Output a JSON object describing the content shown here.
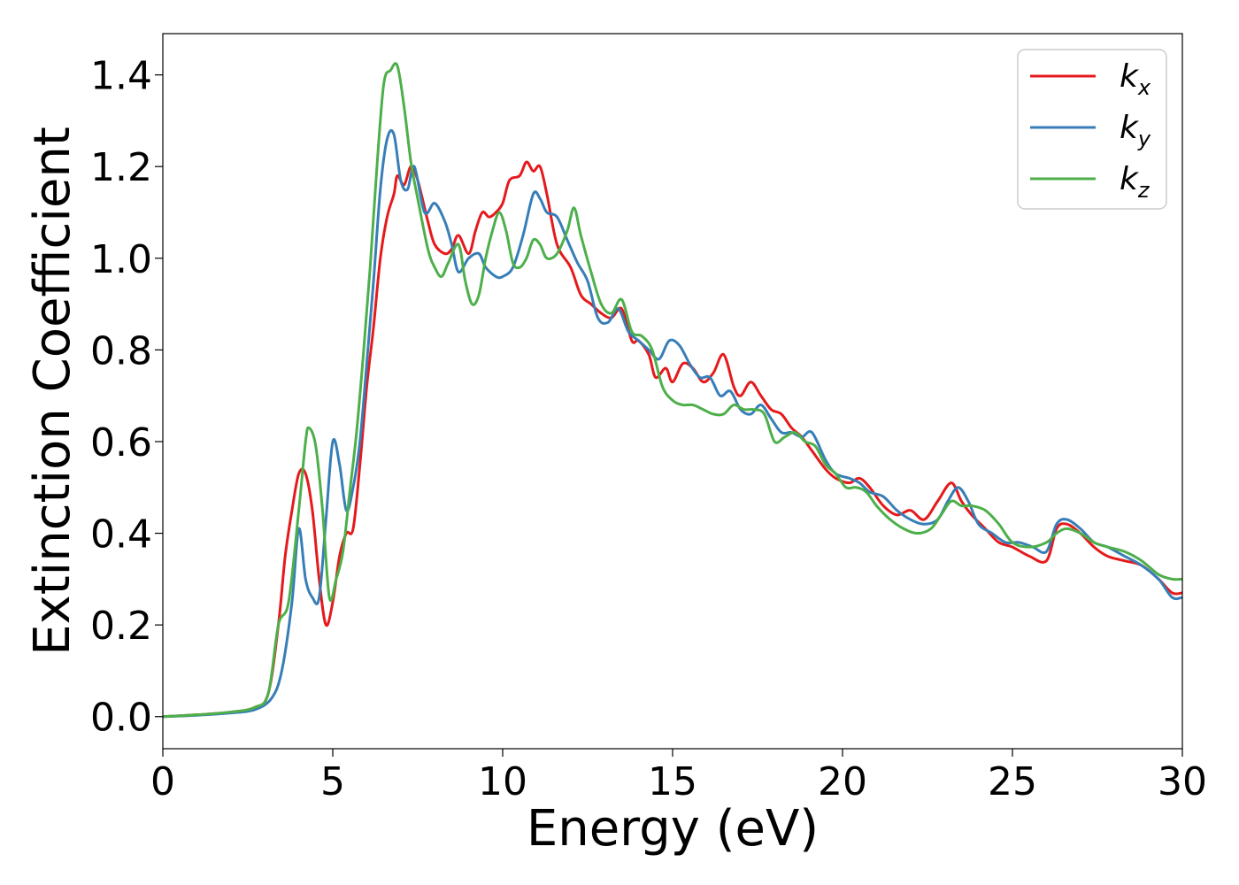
{
  "chart_data": {
    "type": "line",
    "title": "",
    "xlabel": "Energy (eV)",
    "ylabel": "Extinction Coefficient",
    "xlim": [
      0,
      30
    ],
    "ylim": [
      -0.07,
      1.49
    ],
    "xticks": [
      0,
      5,
      10,
      15,
      20,
      25,
      30
    ],
    "yticks": [
      0.0,
      0.2,
      0.4,
      0.6,
      0.8,
      1.0,
      1.2,
      1.4
    ],
    "xtick_labels": [
      "0",
      "5",
      "10",
      "15",
      "20",
      "25",
      "30"
    ],
    "ytick_labels": [
      "0.0",
      "0.2",
      "0.4",
      "0.6",
      "0.8",
      "1.0",
      "1.2",
      "1.4"
    ],
    "grid": false,
    "legend": "top-right",
    "series": [
      {
        "name": "k_x",
        "base": "k",
        "sub": "x",
        "color": "#e41a1c",
        "points": [
          [
            0,
            0
          ],
          [
            1,
            0.004
          ],
          [
            2,
            0.01
          ],
          [
            2.7,
            0.02
          ],
          [
            3.1,
            0.05
          ],
          [
            3.4,
            0.2
          ],
          [
            3.6,
            0.35
          ],
          [
            3.8,
            0.45
          ],
          [
            4.0,
            0.53
          ],
          [
            4.2,
            0.53
          ],
          [
            4.4,
            0.45
          ],
          [
            4.6,
            0.3
          ],
          [
            4.8,
            0.2
          ],
          [
            5.0,
            0.25
          ],
          [
            5.2,
            0.35
          ],
          [
            5.4,
            0.4
          ],
          [
            5.6,
            0.41
          ],
          [
            5.8,
            0.55
          ],
          [
            6.0,
            0.72
          ],
          [
            6.2,
            0.85
          ],
          [
            6.4,
            1.0
          ],
          [
            6.6,
            1.09
          ],
          [
            6.8,
            1.14
          ],
          [
            6.9,
            1.18
          ],
          [
            7.1,
            1.16
          ],
          [
            7.3,
            1.2
          ],
          [
            7.5,
            1.17
          ],
          [
            7.8,
            1.08
          ],
          [
            8.0,
            1.03
          ],
          [
            8.3,
            1.01
          ],
          [
            8.5,
            1.02
          ],
          [
            8.7,
            1.05
          ],
          [
            9.0,
            1.01
          ],
          [
            9.2,
            1.06
          ],
          [
            9.4,
            1.1
          ],
          [
            9.6,
            1.09
          ],
          [
            9.8,
            1.1
          ],
          [
            10.0,
            1.12
          ],
          [
            10.2,
            1.17
          ],
          [
            10.5,
            1.18
          ],
          [
            10.7,
            1.21
          ],
          [
            10.9,
            1.19
          ],
          [
            11.1,
            1.2
          ],
          [
            11.3,
            1.14
          ],
          [
            11.6,
            1.03
          ],
          [
            12.0,
            0.98
          ],
          [
            12.3,
            0.92
          ],
          [
            12.6,
            0.9
          ],
          [
            12.9,
            0.88
          ],
          [
            13.2,
            0.87
          ],
          [
            13.5,
            0.89
          ],
          [
            13.8,
            0.82
          ],
          [
            14.0,
            0.82
          ],
          [
            14.3,
            0.79
          ],
          [
            14.5,
            0.74
          ],
          [
            14.8,
            0.76
          ],
          [
            15.0,
            0.73
          ],
          [
            15.3,
            0.77
          ],
          [
            15.6,
            0.76
          ],
          [
            15.9,
            0.73
          ],
          [
            16.2,
            0.75
          ],
          [
            16.5,
            0.79
          ],
          [
            16.8,
            0.72
          ],
          [
            17.0,
            0.7
          ],
          [
            17.3,
            0.73
          ],
          [
            17.6,
            0.7
          ],
          [
            17.9,
            0.67
          ],
          [
            18.2,
            0.66
          ],
          [
            18.5,
            0.63
          ],
          [
            18.8,
            0.61
          ],
          [
            19.1,
            0.58
          ],
          [
            19.5,
            0.54
          ],
          [
            19.8,
            0.52
          ],
          [
            20.2,
            0.51
          ],
          [
            20.5,
            0.52
          ],
          [
            20.8,
            0.5
          ],
          [
            21.2,
            0.46
          ],
          [
            21.6,
            0.44
          ],
          [
            22.0,
            0.45
          ],
          [
            22.4,
            0.43
          ],
          [
            22.8,
            0.47
          ],
          [
            23.2,
            0.51
          ],
          [
            23.5,
            0.47
          ],
          [
            23.8,
            0.44
          ],
          [
            24.2,
            0.41
          ],
          [
            24.6,
            0.38
          ],
          [
            25.0,
            0.37
          ],
          [
            25.5,
            0.35
          ],
          [
            26.0,
            0.34
          ],
          [
            26.3,
            0.41
          ],
          [
            26.6,
            0.42
          ],
          [
            27.0,
            0.4
          ],
          [
            27.4,
            0.37
          ],
          [
            27.8,
            0.35
          ],
          [
            28.3,
            0.34
          ],
          [
            28.8,
            0.33
          ],
          [
            29.3,
            0.3
          ],
          [
            29.7,
            0.27
          ],
          [
            30,
            0.27
          ]
        ]
      },
      {
        "name": "k_y",
        "base": "k",
        "sub": "y",
        "color": "#377eb8",
        "points": [
          [
            0,
            0
          ],
          [
            1,
            0.003
          ],
          [
            2,
            0.008
          ],
          [
            2.7,
            0.015
          ],
          [
            3.2,
            0.04
          ],
          [
            3.5,
            0.1
          ],
          [
            3.8,
            0.25
          ],
          [
            4.0,
            0.41
          ],
          [
            4.2,
            0.3
          ],
          [
            4.4,
            0.26
          ],
          [
            4.6,
            0.26
          ],
          [
            4.8,
            0.43
          ],
          [
            5.0,
            0.6
          ],
          [
            5.2,
            0.55
          ],
          [
            5.4,
            0.45
          ],
          [
            5.6,
            0.5
          ],
          [
            5.8,
            0.6
          ],
          [
            6.0,
            0.77
          ],
          [
            6.2,
            0.95
          ],
          [
            6.4,
            1.15
          ],
          [
            6.6,
            1.26
          ],
          [
            6.8,
            1.27
          ],
          [
            7.0,
            1.17
          ],
          [
            7.2,
            1.15
          ],
          [
            7.4,
            1.2
          ],
          [
            7.7,
            1.1
          ],
          [
            8.0,
            1.12
          ],
          [
            8.3,
            1.08
          ],
          [
            8.5,
            1.03
          ],
          [
            8.7,
            0.97
          ],
          [
            9.0,
            1.0
          ],
          [
            9.3,
            1.01
          ],
          [
            9.5,
            0.98
          ],
          [
            9.8,
            0.96
          ],
          [
            10.0,
            0.96
          ],
          [
            10.3,
            0.98
          ],
          [
            10.6,
            1.05
          ],
          [
            10.9,
            1.14
          ],
          [
            11.1,
            1.13
          ],
          [
            11.3,
            1.1
          ],
          [
            11.6,
            1.09
          ],
          [
            11.9,
            1.04
          ],
          [
            12.2,
            0.99
          ],
          [
            12.5,
            0.95
          ],
          [
            12.8,
            0.87
          ],
          [
            13.1,
            0.86
          ],
          [
            13.4,
            0.89
          ],
          [
            13.7,
            0.84
          ],
          [
            14.0,
            0.82
          ],
          [
            14.3,
            0.8
          ],
          [
            14.6,
            0.78
          ],
          [
            14.9,
            0.82
          ],
          [
            15.2,
            0.81
          ],
          [
            15.5,
            0.77
          ],
          [
            15.8,
            0.74
          ],
          [
            16.1,
            0.74
          ],
          [
            16.4,
            0.7
          ],
          [
            16.7,
            0.71
          ],
          [
            17.0,
            0.67
          ],
          [
            17.3,
            0.66
          ],
          [
            17.6,
            0.68
          ],
          [
            17.9,
            0.65
          ],
          [
            18.2,
            0.62
          ],
          [
            18.5,
            0.62
          ],
          [
            18.8,
            0.61
          ],
          [
            19.1,
            0.62
          ],
          [
            19.5,
            0.56
          ],
          [
            19.8,
            0.53
          ],
          [
            20.2,
            0.52
          ],
          [
            20.5,
            0.51
          ],
          [
            20.8,
            0.49
          ],
          [
            21.2,
            0.48
          ],
          [
            21.6,
            0.45
          ],
          [
            22.0,
            0.43
          ],
          [
            22.4,
            0.42
          ],
          [
            22.8,
            0.43
          ],
          [
            23.1,
            0.47
          ],
          [
            23.4,
            0.5
          ],
          [
            23.7,
            0.47
          ],
          [
            24.0,
            0.42
          ],
          [
            24.4,
            0.4
          ],
          [
            24.8,
            0.38
          ],
          [
            25.2,
            0.38
          ],
          [
            25.6,
            0.37
          ],
          [
            26.0,
            0.36
          ],
          [
            26.3,
            0.42
          ],
          [
            26.6,
            0.43
          ],
          [
            27.0,
            0.41
          ],
          [
            27.4,
            0.38
          ],
          [
            27.8,
            0.37
          ],
          [
            28.3,
            0.35
          ],
          [
            28.8,
            0.33
          ],
          [
            29.3,
            0.3
          ],
          [
            29.7,
            0.26
          ],
          [
            30,
            0.26
          ]
        ]
      },
      {
        "name": "k_z",
        "base": "k",
        "sub": "z",
        "color": "#4daf4a",
        "points": [
          [
            0,
            0
          ],
          [
            1,
            0.004
          ],
          [
            2,
            0.01
          ],
          [
            2.7,
            0.02
          ],
          [
            3.1,
            0.05
          ],
          [
            3.4,
            0.2
          ],
          [
            3.7,
            0.25
          ],
          [
            4.0,
            0.45
          ],
          [
            4.2,
            0.6
          ],
          [
            4.3,
            0.63
          ],
          [
            4.5,
            0.59
          ],
          [
            4.7,
            0.45
          ],
          [
            4.9,
            0.26
          ],
          [
            5.1,
            0.3
          ],
          [
            5.3,
            0.36
          ],
          [
            5.5,
            0.49
          ],
          [
            5.7,
            0.62
          ],
          [
            5.9,
            0.79
          ],
          [
            6.1,
            0.98
          ],
          [
            6.3,
            1.2
          ],
          [
            6.5,
            1.38
          ],
          [
            6.7,
            1.41
          ],
          [
            6.9,
            1.42
          ],
          [
            7.1,
            1.33
          ],
          [
            7.3,
            1.21
          ],
          [
            7.5,
            1.13
          ],
          [
            7.8,
            1.02
          ],
          [
            8.0,
            0.98
          ],
          [
            8.2,
            0.96
          ],
          [
            8.4,
            0.99
          ],
          [
            8.7,
            1.03
          ],
          [
            8.9,
            0.95
          ],
          [
            9.1,
            0.9
          ],
          [
            9.3,
            0.92
          ],
          [
            9.5,
            1.0
          ],
          [
            9.7,
            1.06
          ],
          [
            9.9,
            1.1
          ],
          [
            10.1,
            1.06
          ],
          [
            10.3,
            0.99
          ],
          [
            10.5,
            0.98
          ],
          [
            10.7,
            1.0
          ],
          [
            10.9,
            1.04
          ],
          [
            11.1,
            1.03
          ],
          [
            11.3,
            1.0
          ],
          [
            11.6,
            1.01
          ],
          [
            11.9,
            1.06
          ],
          [
            12.1,
            1.11
          ],
          [
            12.3,
            1.05
          ],
          [
            12.6,
            0.97
          ],
          [
            12.9,
            0.9
          ],
          [
            13.2,
            0.88
          ],
          [
            13.5,
            0.91
          ],
          [
            13.8,
            0.84
          ],
          [
            14.1,
            0.83
          ],
          [
            14.4,
            0.8
          ],
          [
            14.7,
            0.72
          ],
          [
            15.0,
            0.69
          ],
          [
            15.3,
            0.68
          ],
          [
            15.6,
            0.68
          ],
          [
            15.9,
            0.67
          ],
          [
            16.2,
            0.66
          ],
          [
            16.5,
            0.66
          ],
          [
            16.8,
            0.68
          ],
          [
            17.1,
            0.67
          ],
          [
            17.4,
            0.67
          ],
          [
            17.7,
            0.66
          ],
          [
            18.0,
            0.6
          ],
          [
            18.3,
            0.61
          ],
          [
            18.6,
            0.62
          ],
          [
            18.9,
            0.6
          ],
          [
            19.2,
            0.59
          ],
          [
            19.5,
            0.55
          ],
          [
            19.8,
            0.53
          ],
          [
            20.1,
            0.5
          ],
          [
            20.4,
            0.5
          ],
          [
            20.7,
            0.49
          ],
          [
            21.0,
            0.46
          ],
          [
            21.4,
            0.43
          ],
          [
            21.8,
            0.41
          ],
          [
            22.2,
            0.4
          ],
          [
            22.6,
            0.41
          ],
          [
            22.9,
            0.44
          ],
          [
            23.2,
            0.47
          ],
          [
            23.5,
            0.46
          ],
          [
            23.8,
            0.46
          ],
          [
            24.2,
            0.45
          ],
          [
            24.6,
            0.42
          ],
          [
            25.0,
            0.38
          ],
          [
            25.5,
            0.37
          ],
          [
            26.0,
            0.38
          ],
          [
            26.3,
            0.4
          ],
          [
            26.6,
            0.41
          ],
          [
            27.0,
            0.4
          ],
          [
            27.4,
            0.38
          ],
          [
            27.8,
            0.37
          ],
          [
            28.3,
            0.36
          ],
          [
            28.8,
            0.34
          ],
          [
            29.3,
            0.31
          ],
          [
            29.7,
            0.3
          ],
          [
            30,
            0.3
          ]
        ]
      }
    ]
  }
}
